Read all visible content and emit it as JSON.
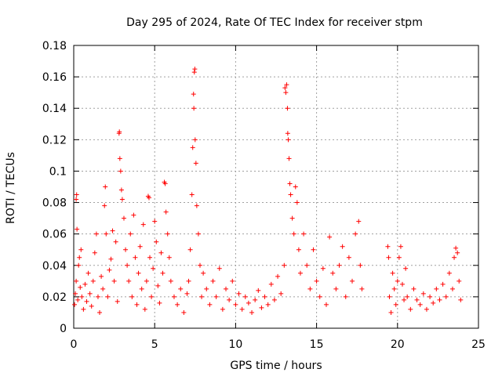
{
  "chart_data": {
    "type": "scatter",
    "title": "Day 295 of 2024, Rate Of TEC Index for receiver stpm",
    "xlabel": "GPS time / hours",
    "ylabel": "ROTI / TECUs",
    "xlim": [
      0,
      25
    ],
    "ylim": [
      0,
      0.18
    ],
    "x_ticks": [
      0,
      5,
      10,
      15,
      20,
      25
    ],
    "x_tick_labels": [
      "0",
      "5",
      "10",
      "15",
      "20",
      "25"
    ],
    "y_ticks": [
      0,
      0.02,
      0.04,
      0.06,
      0.08,
      0.1,
      0.12,
      0.14,
      0.16,
      0.18
    ],
    "y_tick_labels": [
      "0",
      "0.02",
      "0.04",
      "0.06",
      "0.08",
      "0.1",
      "0.12",
      "0.14",
      "0.16",
      "0.18"
    ],
    "grid": true,
    "marker": "+",
    "color": "#ff0000",
    "series": [
      {
        "name": "ROTI",
        "points": [
          [
            0.05,
            0.015
          ],
          [
            0.1,
            0.022
          ],
          [
            0.15,
            0.03
          ],
          [
            0.15,
            0.082
          ],
          [
            0.18,
            0.085
          ],
          [
            0.2,
            0.063
          ],
          [
            0.25,
            0.018
          ],
          [
            0.3,
            0.04
          ],
          [
            0.35,
            0.045
          ],
          [
            0.4,
            0.026
          ],
          [
            0.45,
            0.05
          ],
          [
            0.5,
            0.02
          ],
          [
            0.6,
            0.012
          ],
          [
            0.7,
            0.028
          ],
          [
            0.8,
            0.017
          ],
          [
            0.9,
            0.035
          ],
          [
            1.0,
            0.022
          ],
          [
            1.1,
            0.014
          ],
          [
            1.2,
            0.03
          ],
          [
            1.3,
            0.048
          ],
          [
            1.4,
            0.06
          ],
          [
            1.5,
            0.02
          ],
          [
            1.6,
            0.01
          ],
          [
            1.7,
            0.033
          ],
          [
            1.8,
            0.025
          ],
          [
            1.9,
            0.078
          ],
          [
            1.95,
            0.09
          ],
          [
            2.0,
            0.06
          ],
          [
            2.1,
            0.02
          ],
          [
            2.2,
            0.037
          ],
          [
            2.3,
            0.044
          ],
          [
            2.4,
            0.062
          ],
          [
            2.5,
            0.03
          ],
          [
            2.6,
            0.055
          ],
          [
            2.7,
            0.017
          ],
          [
            2.8,
            0.124
          ],
          [
            2.82,
            0.125
          ],
          [
            2.85,
            0.108
          ],
          [
            2.9,
            0.1
          ],
          [
            2.95,
            0.088
          ],
          [
            3.0,
            0.082
          ],
          [
            3.1,
            0.07
          ],
          [
            3.2,
            0.05
          ],
          [
            3.3,
            0.04
          ],
          [
            3.4,
            0.03
          ],
          [
            3.5,
            0.06
          ],
          [
            3.6,
            0.02
          ],
          [
            3.7,
            0.072
          ],
          [
            3.8,
            0.045
          ],
          [
            3.9,
            0.015
          ],
          [
            4.0,
            0.035
          ],
          [
            4.1,
            0.052
          ],
          [
            4.2,
            0.025
          ],
          [
            4.3,
            0.066
          ],
          [
            4.4,
            0.012
          ],
          [
            4.5,
            0.03
          ],
          [
            4.6,
            0.084
          ],
          [
            4.65,
            0.083
          ],
          [
            4.7,
            0.045
          ],
          [
            4.8,
            0.02
          ],
          [
            4.9,
            0.038
          ],
          [
            5.0,
            0.068
          ],
          [
            5.1,
            0.055
          ],
          [
            5.2,
            0.027
          ],
          [
            5.3,
            0.016
          ],
          [
            5.4,
            0.048
          ],
          [
            5.5,
            0.035
          ],
          [
            5.6,
            0.093
          ],
          [
            5.65,
            0.092
          ],
          [
            5.7,
            0.074
          ],
          [
            5.8,
            0.06
          ],
          [
            5.9,
            0.045
          ],
          [
            6.0,
            0.03
          ],
          [
            6.2,
            0.02
          ],
          [
            6.4,
            0.015
          ],
          [
            6.6,
            0.025
          ],
          [
            6.8,
            0.01
          ],
          [
            7.0,
            0.022
          ],
          [
            7.1,
            0.03
          ],
          [
            7.2,
            0.05
          ],
          [
            7.3,
            0.085
          ],
          [
            7.35,
            0.115
          ],
          [
            7.4,
            0.149
          ],
          [
            7.42,
            0.14
          ],
          [
            7.45,
            0.163
          ],
          [
            7.48,
            0.165
          ],
          [
            7.5,
            0.12
          ],
          [
            7.55,
            0.105
          ],
          [
            7.6,
            0.078
          ],
          [
            7.7,
            0.06
          ],
          [
            7.8,
            0.04
          ],
          [
            7.9,
            0.02
          ],
          [
            8.0,
            0.035
          ],
          [
            8.2,
            0.025
          ],
          [
            8.4,
            0.015
          ],
          [
            8.6,
            0.03
          ],
          [
            8.8,
            0.02
          ],
          [
            9.0,
            0.038
          ],
          [
            9.2,
            0.012
          ],
          [
            9.4,
            0.025
          ],
          [
            9.6,
            0.018
          ],
          [
            9.8,
            0.03
          ],
          [
            10.0,
            0.015
          ],
          [
            10.2,
            0.022
          ],
          [
            10.4,
            0.012
          ],
          [
            10.6,
            0.02
          ],
          [
            10.8,
            0.016
          ],
          [
            11.0,
            0.01
          ],
          [
            11.2,
            0.018
          ],
          [
            11.4,
            0.024
          ],
          [
            11.6,
            0.013
          ],
          [
            11.8,
            0.02
          ],
          [
            12.0,
            0.015
          ],
          [
            12.2,
            0.028
          ],
          [
            12.4,
            0.018
          ],
          [
            12.6,
            0.033
          ],
          [
            12.8,
            0.022
          ],
          [
            13.0,
            0.04
          ],
          [
            13.05,
            0.153
          ],
          [
            13.1,
            0.15
          ],
          [
            13.15,
            0.155
          ],
          [
            13.2,
            0.14
          ],
          [
            13.22,
            0.124
          ],
          [
            13.25,
            0.12
          ],
          [
            13.3,
            0.108
          ],
          [
            13.35,
            0.092
          ],
          [
            13.4,
            0.085
          ],
          [
            13.5,
            0.07
          ],
          [
            13.6,
            0.06
          ],
          [
            13.7,
            0.09
          ],
          [
            13.8,
            0.08
          ],
          [
            13.9,
            0.05
          ],
          [
            14.0,
            0.035
          ],
          [
            14.2,
            0.06
          ],
          [
            14.4,
            0.04
          ],
          [
            14.6,
            0.025
          ],
          [
            14.8,
            0.05
          ],
          [
            15.0,
            0.03
          ],
          [
            15.2,
            0.02
          ],
          [
            15.4,
            0.038
          ],
          [
            15.6,
            0.015
          ],
          [
            15.8,
            0.058
          ],
          [
            16.0,
            0.035
          ],
          [
            16.2,
            0.025
          ],
          [
            16.4,
            0.04
          ],
          [
            16.6,
            0.052
          ],
          [
            16.8,
            0.02
          ],
          [
            17.0,
            0.045
          ],
          [
            17.2,
            0.03
          ],
          [
            17.4,
            0.06
          ],
          [
            17.6,
            0.068
          ],
          [
            17.7,
            0.04
          ],
          [
            17.8,
            0.025
          ],
          [
            19.4,
            0.052
          ],
          [
            19.45,
            0.045
          ],
          [
            19.5,
            0.02
          ],
          [
            19.6,
            0.01
          ],
          [
            19.7,
            0.035
          ],
          [
            19.8,
            0.025
          ],
          [
            19.9,
            0.015
          ],
          [
            20.0,
            0.03
          ],
          [
            20.1,
            0.045
          ],
          [
            20.2,
            0.052
          ],
          [
            20.3,
            0.028
          ],
          [
            20.4,
            0.018
          ],
          [
            20.5,
            0.038
          ],
          [
            20.6,
            0.02
          ],
          [
            20.8,
            0.012
          ],
          [
            21.0,
            0.025
          ],
          [
            21.2,
            0.018
          ],
          [
            21.4,
            0.015
          ],
          [
            21.6,
            0.022
          ],
          [
            21.8,
            0.012
          ],
          [
            22.0,
            0.02
          ],
          [
            22.2,
            0.016
          ],
          [
            22.4,
            0.025
          ],
          [
            22.6,
            0.018
          ],
          [
            22.8,
            0.028
          ],
          [
            23.0,
            0.02
          ],
          [
            23.2,
            0.035
          ],
          [
            23.4,
            0.025
          ],
          [
            23.5,
            0.045
          ],
          [
            23.6,
            0.051
          ],
          [
            23.7,
            0.048
          ],
          [
            23.8,
            0.03
          ],
          [
            23.9,
            0.018
          ]
        ]
      }
    ]
  }
}
